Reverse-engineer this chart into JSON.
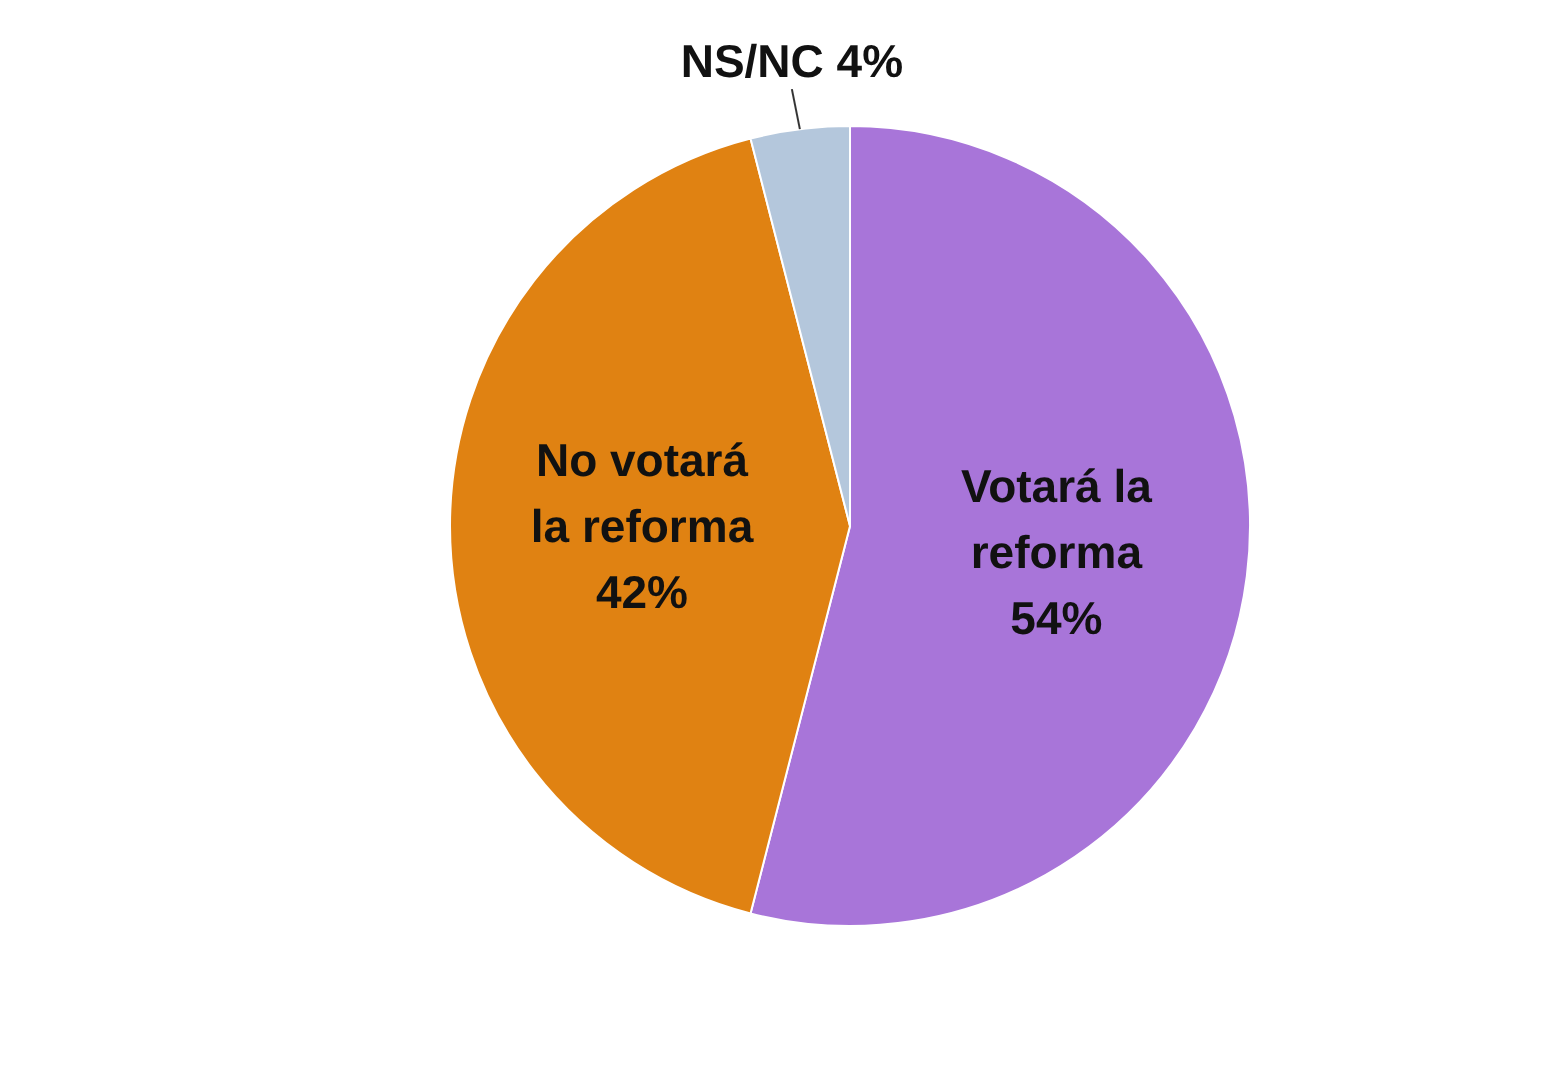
{
  "chart_data": {
    "type": "pie",
    "categories": [
      "Votará la reforma",
      "No votará la reforma",
      "NS/NC"
    ],
    "values": [
      54,
      42,
      4
    ],
    "value_labels": [
      "54%",
      "42%",
      "4%"
    ],
    "colors": [
      "#a875d9",
      "#e08212",
      "#b4c7dc"
    ],
    "legend": false
  }
}
